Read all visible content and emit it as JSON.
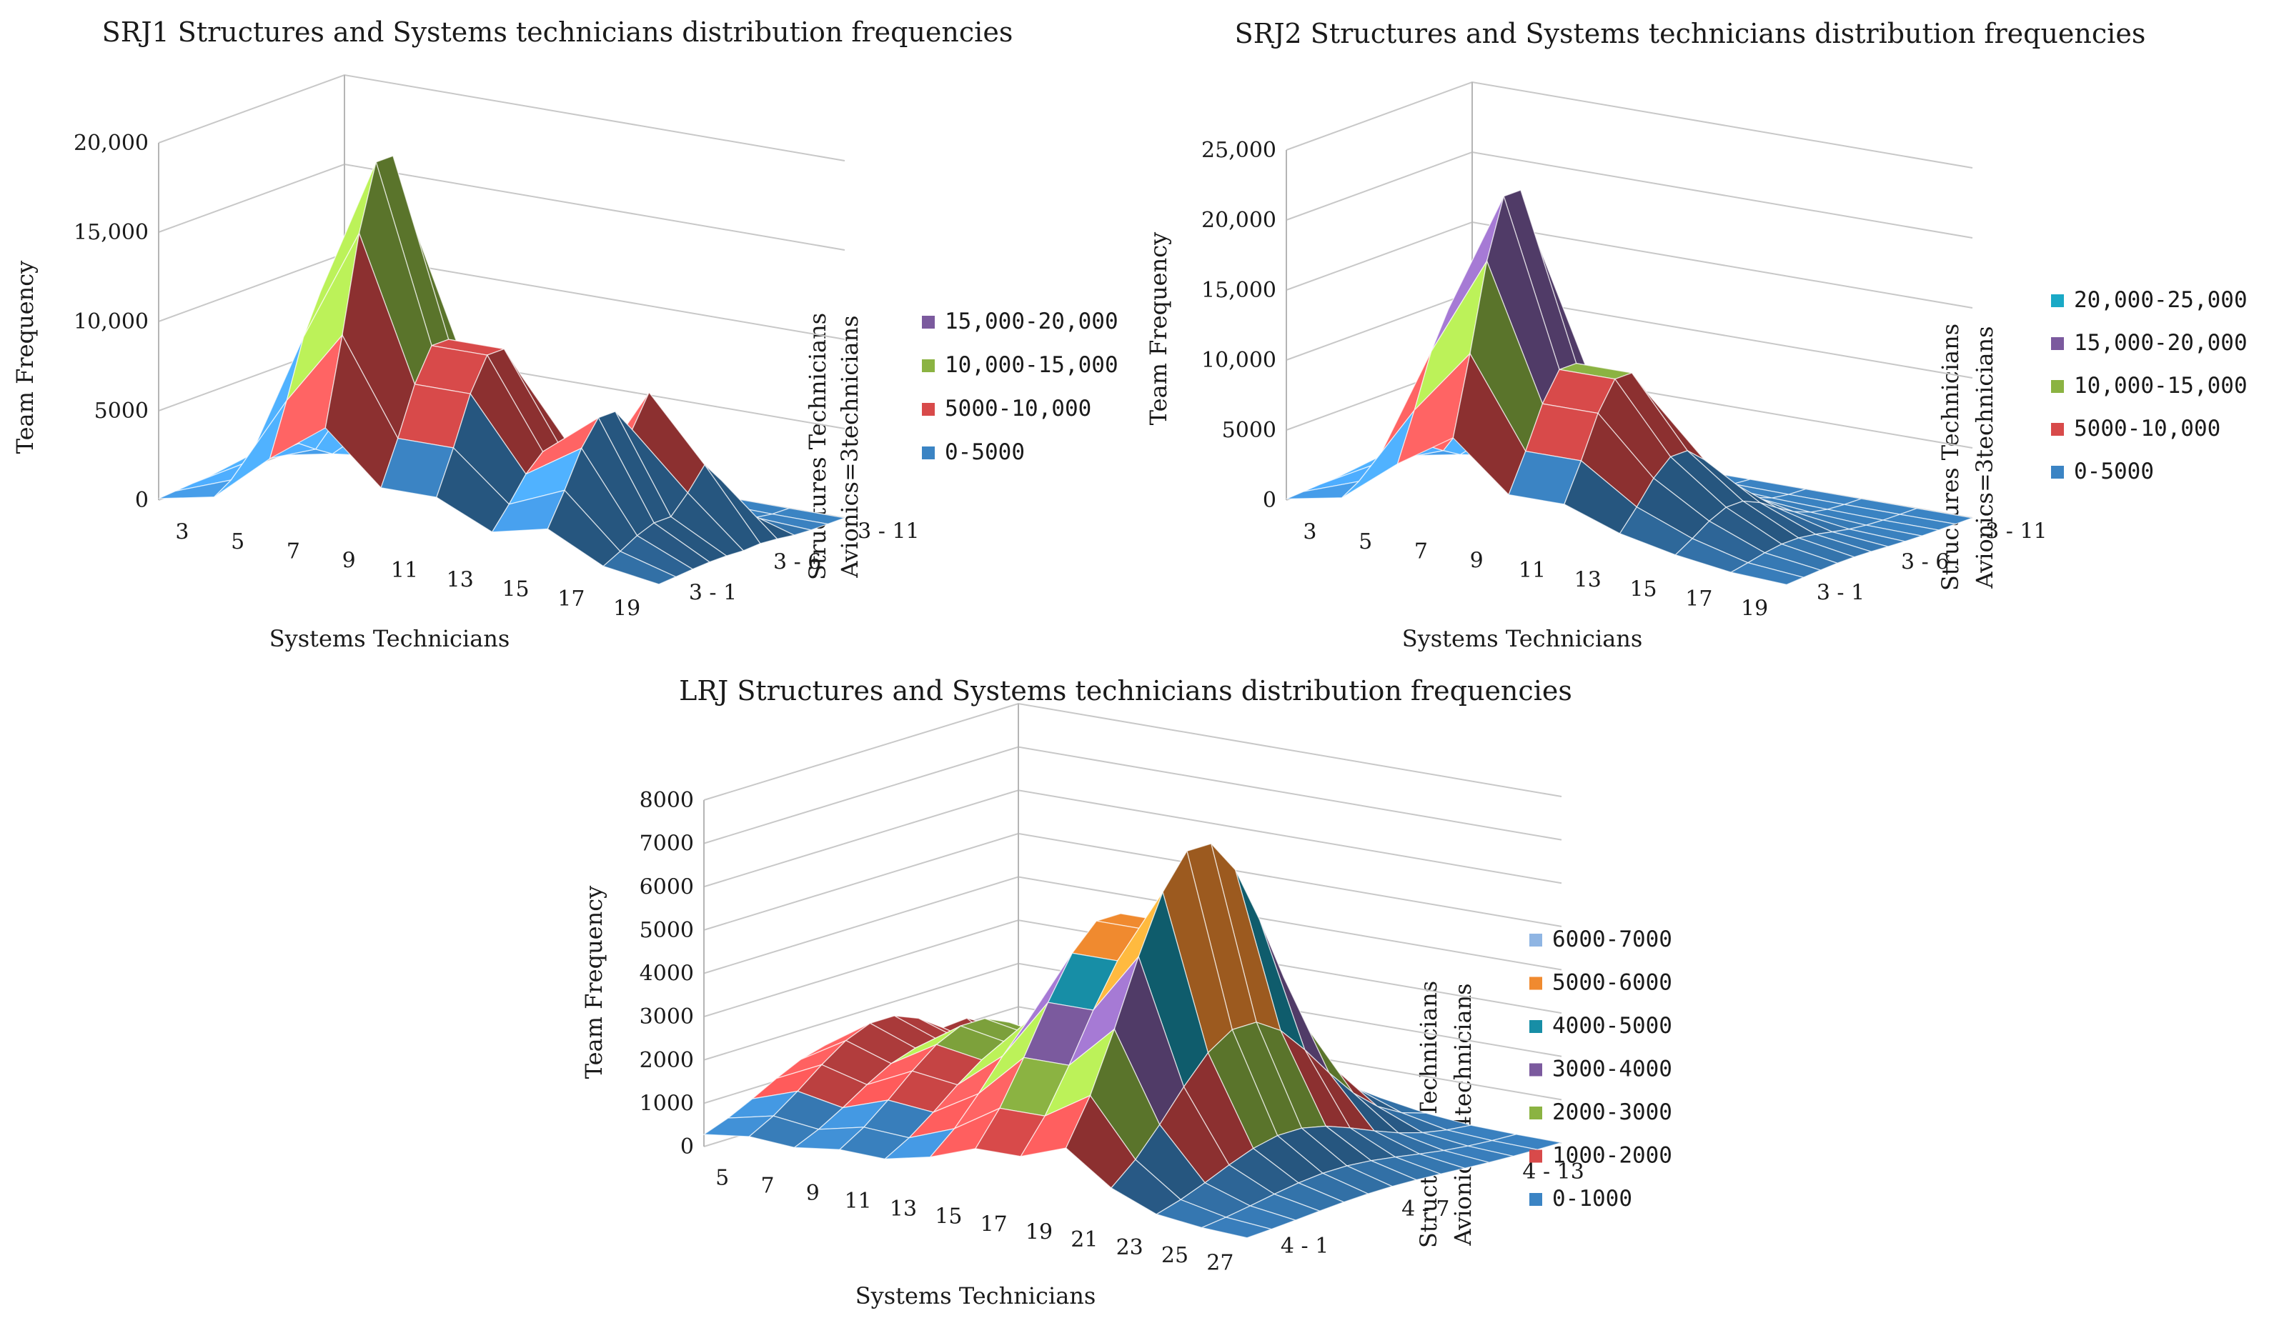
{
  "chart_data": [
    {
      "type": "surface",
      "title": "SRJ1 Structures and Systems technicians distribution frequencies",
      "xlabel": "Systems Technicians",
      "ylabel": "Team Frequency",
      "depth_label": [
        "Structures Technicians",
        "Avionics=3technicians"
      ],
      "z_ticks": [
        "0",
        "5000",
        "10,000",
        "15,000",
        "20,000"
      ],
      "z_max": 20000,
      "x_ticks": [
        "3",
        "5",
        "7",
        "9",
        "11",
        "13",
        "15",
        "17",
        "19"
      ],
      "depth_ticks": [
        "3 - 1",
        "3 - 6",
        "3 - 11"
      ],
      "legend": [
        {
          "label": "15,000-20,000",
          "color": "#7b5a9e"
        },
        {
          "label": "10,000-15,000",
          "color": "#8bb342"
        },
        {
          "label": "5000-10,000",
          "color": "#d84a4a"
        },
        {
          "label": "0-5000",
          "color": "#3b84c4"
        }
      ],
      "x": [
        3,
        5,
        7,
        9,
        11,
        13,
        15,
        17,
        19
      ],
      "peak_profile": [
        300,
        2500,
        12000,
        20000,
        10000,
        5000,
        7500,
        2000,
        300
      ],
      "secondary_peak": {
        "x": 17,
        "z": 8000
      }
    },
    {
      "type": "surface",
      "title": "SRJ2 Structures and Systems technicians distribution frequencies",
      "xlabel": "Systems Technicians",
      "ylabel": "Team Frequency",
      "depth_label": [
        "Structures Technicians",
        "Avionics=3technicians"
      ],
      "z_ticks": [
        "0",
        "5000",
        "10,000",
        "15,000",
        "20,000",
        "25,000"
      ],
      "z_max": 25000,
      "x_ticks": [
        "3",
        "5",
        "7",
        "9",
        "11",
        "13",
        "15",
        "17",
        "19"
      ],
      "depth_ticks": [
        "3 - 1",
        "3 - 6",
        "3 - 11"
      ],
      "legend": [
        {
          "label": "20,000-25,000",
          "color": "#1aa9c6"
        },
        {
          "label": "15,000-20,000",
          "color": "#7b5a9e"
        },
        {
          "label": "10,000-15,000",
          "color": "#8bb342"
        },
        {
          "label": "5000-10,000",
          "color": "#d84a4a"
        },
        {
          "label": "0-5000",
          "color": "#3b84c4"
        }
      ],
      "x": [
        3,
        5,
        7,
        9,
        11,
        13,
        15,
        17,
        19
      ],
      "peak_profile": [
        300,
        3000,
        14000,
        23000,
        11000,
        6000,
        3000,
        1000,
        300
      ]
    },
    {
      "type": "surface",
      "title": "LRJ Structures and Systems technicians distribution frequencies",
      "xlabel": "Systems Technicians",
      "ylabel": "Team Frequency",
      "depth_label": [
        "Structures Technicians",
        "Avionics=4technicians"
      ],
      "z_ticks": [
        "0",
        "1000",
        "2000",
        "3000",
        "4000",
        "5000",
        "6000",
        "7000",
        "8000"
      ],
      "z_max": 8000,
      "x_ticks": [
        "5",
        "7",
        "9",
        "11",
        "13",
        "15",
        "17",
        "19",
        "21",
        "23",
        "25",
        "27"
      ],
      "depth_ticks": [
        "4 - 1",
        "4 - 7",
        "4 - 13"
      ],
      "legend": [
        {
          "label": "6000-7000",
          "color": "#8fb5e3"
        },
        {
          "label": "5000-6000",
          "color": "#f08a2f"
        },
        {
          "label": "4000-5000",
          "color": "#178ea6"
        },
        {
          "label": "3000-4000",
          "color": "#7b5a9e"
        },
        {
          "label": "2000-3000",
          "color": "#8bb342"
        },
        {
          "label": "1000-2000",
          "color": "#d84a4a"
        },
        {
          "label": "0-1000",
          "color": "#3b84c4"
        }
      ],
      "x": [
        5,
        7,
        9,
        11,
        13,
        15,
        17,
        19,
        21,
        23,
        25,
        27
      ],
      "peak_profile": [
        1500,
        2200,
        1800,
        2500,
        2300,
        3500,
        5500,
        7500,
        3500,
        1200,
        500,
        200
      ]
    }
  ],
  "colors": {
    "top_band": "#e8a0a0",
    "zero_band": "#3b84c4"
  }
}
